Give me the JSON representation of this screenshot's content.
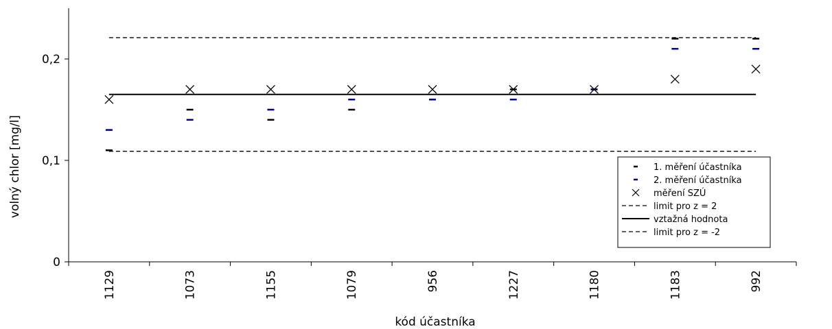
{
  "chart_data": {
    "type": "scatter",
    "xlabel": "kód účastníka",
    "ylabel": "volný chlor [mg/l]",
    "ylim": [
      0,
      0.25
    ],
    "yticks": [
      0,
      0.1,
      0.2
    ],
    "ytick_labels": [
      "0",
      "0,1",
      "0,2"
    ],
    "grid": false,
    "legend_position": "bottom-right",
    "categories": [
      "1129",
      "1073",
      "1155",
      "1079",
      "956",
      "1227",
      "1180",
      "1183",
      "992"
    ],
    "series": [
      {
        "name": "1. měření účastníka",
        "marker": "dash",
        "color": "#000000",
        "values": [
          0.11,
          0.15,
          0.14,
          0.15,
          0.16,
          0.17,
          0.17,
          0.22,
          0.22
        ]
      },
      {
        "name": "2. měření účastníka",
        "marker": "dash",
        "color": "#000080",
        "values": [
          0.13,
          0.14,
          0.15,
          0.16,
          0.16,
          0.16,
          0.17,
          0.21,
          0.21
        ]
      },
      {
        "name": "měření SZÚ",
        "marker": "x",
        "color": "#000000",
        "values": [
          0.16,
          0.17,
          0.17,
          0.17,
          0.17,
          0.17,
          0.17,
          0.18,
          0.19
        ]
      }
    ],
    "lines": [
      {
        "name": "limit pro z = 2",
        "style": "dashed",
        "value": 0.221
      },
      {
        "name": "vztažná hodnota",
        "style": "solid",
        "value": 0.165
      },
      {
        "name": "limit pro z = -2",
        "style": "dashed",
        "value": 0.109
      }
    ]
  }
}
